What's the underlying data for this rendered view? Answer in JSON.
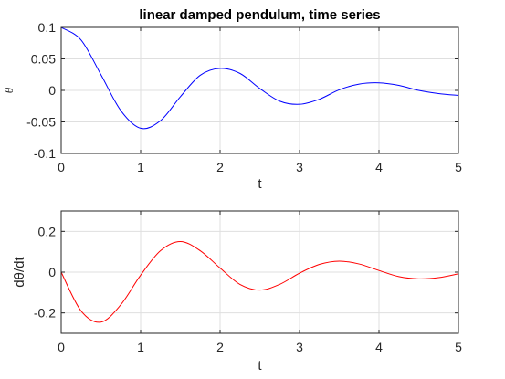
{
  "chart_data": [
    {
      "type": "line",
      "title": "linear damped pendulum, time series",
      "xlabel": "t",
      "ylabel": "θ",
      "xlim": [
        0,
        5
      ],
      "ylim": [
        -0.1,
        0.1
      ],
      "xticks": [
        0,
        1,
        2,
        3,
        4,
        5
      ],
      "xtick_labels": [
        "0",
        "1",
        "2",
        "3",
        "4",
        "5"
      ],
      "yticks": [
        -0.1,
        -0.05,
        0,
        0.05,
        0.1
      ],
      "ytick_labels": [
        "-0.1",
        "-0.05",
        "0",
        "0.05",
        "0.1"
      ],
      "grid": true,
      "legend": null,
      "series": [
        {
          "color": "#0000ff",
          "x": [
            0,
            0.25,
            0.5,
            0.75,
            1.0,
            1.25,
            1.5,
            1.75,
            2.0,
            2.25,
            2.5,
            2.75,
            3.0,
            3.25,
            3.5,
            3.75,
            4.0,
            4.25,
            4.5,
            4.75,
            5.0
          ],
          "y": [
            0.1,
            0.08,
            0.025,
            -0.032,
            -0.06,
            -0.048,
            -0.01,
            0.024,
            0.035,
            0.027,
            0.003,
            -0.017,
            -0.022,
            -0.014,
            0.001,
            0.01,
            0.012,
            0.008,
            0.0,
            -0.005,
            -0.008
          ]
        }
      ]
    },
    {
      "type": "line",
      "title": "",
      "xlabel": "t",
      "ylabel": "dθ/dt",
      "xlim": [
        0,
        5
      ],
      "ylim": [
        -0.3,
        0.3
      ],
      "xticks": [
        0,
        1,
        2,
        3,
        4,
        5
      ],
      "xtick_labels": [
        "0",
        "1",
        "2",
        "3",
        "4",
        "5"
      ],
      "yticks": [
        -0.2,
        0,
        0.2
      ],
      "ytick_labels": [
        "-0.2",
        "0",
        "0.2"
      ],
      "grid": true,
      "legend": null,
      "series": [
        {
          "color": "#ff0000",
          "x": [
            0,
            0.25,
            0.5,
            0.75,
            1.0,
            1.25,
            1.5,
            1.75,
            2.0,
            2.25,
            2.5,
            2.75,
            3.0,
            3.25,
            3.5,
            3.75,
            4.0,
            4.25,
            4.5,
            4.75,
            5.0
          ],
          "y": [
            0,
            -0.19,
            -0.245,
            -0.16,
            -0.015,
            0.105,
            0.15,
            0.105,
            0.02,
            -0.06,
            -0.088,
            -0.06,
            -0.005,
            0.038,
            0.054,
            0.04,
            0.008,
            -0.022,
            -0.033,
            -0.027,
            -0.008
          ]
        }
      ]
    }
  ]
}
